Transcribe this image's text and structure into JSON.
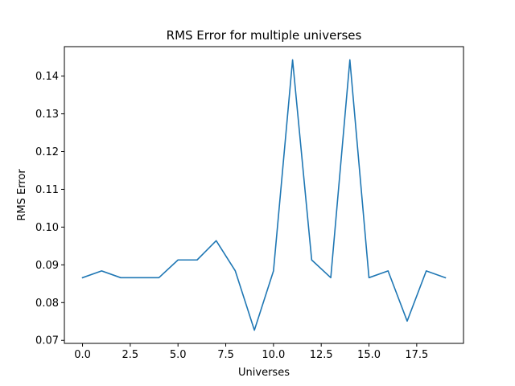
{
  "chart_data": {
    "type": "line",
    "title": "RMS Error for multiple universes",
    "xlabel": "Universes",
    "ylabel": "RMS Error",
    "xlim": [
      -0.95,
      19.95
    ],
    "ylim": [
      0.0692,
      0.1478
    ],
    "grid": false,
    "legend": "none",
    "series": [
      {
        "name": "RMS Error",
        "color": "#1f77b4",
        "x": [
          0,
          1,
          2,
          3,
          4,
          5,
          6,
          7,
          8,
          9,
          10,
          11,
          12,
          13,
          14,
          15,
          16,
          17,
          18,
          19
        ],
        "values": [
          0.0866,
          0.0884,
          0.0866,
          0.0866,
          0.0866,
          0.0913,
          0.0913,
          0.0964,
          0.0884,
          0.0727,
          0.0884,
          0.1443,
          0.0913,
          0.0866,
          0.1443,
          0.0866,
          0.0884,
          0.0751,
          0.0884,
          0.0866
        ]
      }
    ],
    "xticks": [
      0,
      2.5,
      5,
      7.5,
      10,
      12.5,
      15,
      17.5
    ],
    "xtick_labels": [
      "0.0",
      "2.5",
      "5.0",
      "7.5",
      "10.0",
      "12.5",
      "15.0",
      "17.5"
    ],
    "yticks": [
      0.07,
      0.08,
      0.09,
      0.1,
      0.11,
      0.12,
      0.13,
      0.14
    ],
    "ytick_labels": [
      "0.07",
      "0.08",
      "0.09",
      "0.10",
      "0.11",
      "0.12",
      "0.13",
      "0.14"
    ]
  }
}
